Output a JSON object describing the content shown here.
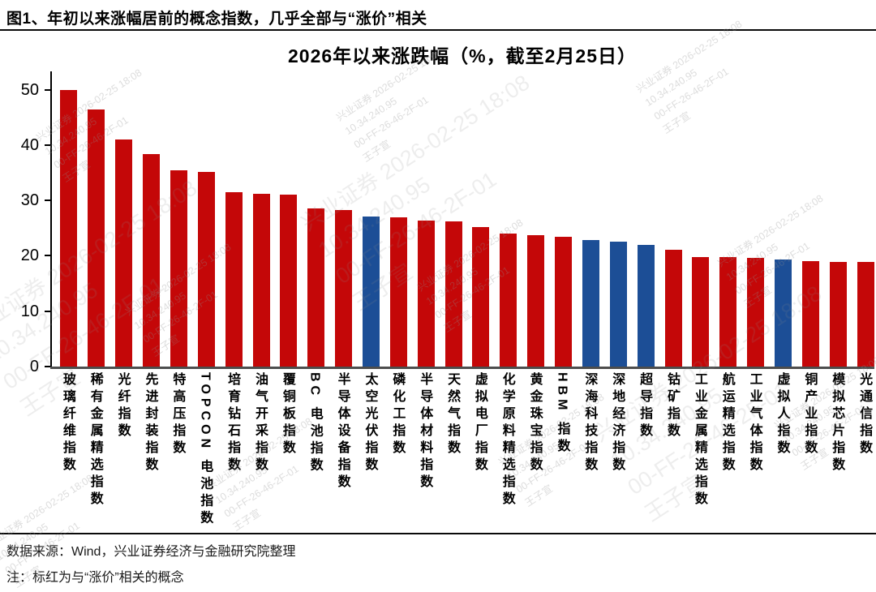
{
  "figure_title": "图1、年初以来涨幅居前的概念指数，几乎全部与“涨价”相关",
  "chart_data": {
    "type": "bar",
    "title": "2026年以来涨跌幅（%，截至2月25日）",
    "categories": [
      "玻璃纤维指数",
      "稀有金属精选指数",
      "光纤指数",
      "先进封装指数",
      "特高压指数",
      "TOPCON 电池指数",
      "培育钻石指数",
      "油气开采指数",
      "覆铜板指数",
      "BC 电池指数",
      "半导体设备指数",
      "太空光伏指数",
      "磷化工指数",
      "半导体材料指数",
      "天然气指数",
      "虚拟电厂指数",
      "化学原料精选指数",
      "黄金珠宝指数",
      "HBM 指数",
      "深海科技指数",
      "深地经济指数",
      "超导指数",
      "钴矿指数",
      "工业金属精选指数",
      "航运精选指数",
      "工业气体指数",
      "虚拟人指数",
      "铜产业指数",
      "模拟芯片指数",
      "光通信指数"
    ],
    "values": [
      50.0,
      46.4,
      41.0,
      38.4,
      35.4,
      35.2,
      31.5,
      31.2,
      31.0,
      28.5,
      28.2,
      27.1,
      26.9,
      26.4,
      26.2,
      25.2,
      24.0,
      23.7,
      23.4,
      22.8,
      22.5,
      21.9,
      21.1,
      19.7,
      19.7,
      19.6,
      19.4,
      19.0,
      18.9,
      18.9
    ],
    "bar_colors": [
      "red",
      "red",
      "red",
      "red",
      "red",
      "red",
      "red",
      "red",
      "red",
      "red",
      "red",
      "blue",
      "red",
      "red",
      "red",
      "red",
      "red",
      "red",
      "red",
      "blue",
      "blue",
      "blue",
      "red",
      "red",
      "red",
      "red",
      "blue",
      "red",
      "red",
      "red"
    ],
    "colors": {
      "red": "#C40708",
      "blue": "#1C4E96"
    },
    "xlabel": "",
    "ylabel": "",
    "ylim": [
      0,
      50
    ],
    "yticks": [
      0,
      10,
      20,
      30,
      40,
      50
    ],
    "grid": false,
    "legend": null
  },
  "footer": {
    "source": "数据来源：Wind，兴业证券经济与金融研究院整理",
    "note": "注：标红为与“涨价”相关的概念"
  },
  "watermark": {
    "lines": [
      "兴业证券 2026-02-25 18:08",
      "10.34.240.95",
      "00-FF-26-46-2F-01",
      "王子宣"
    ]
  }
}
